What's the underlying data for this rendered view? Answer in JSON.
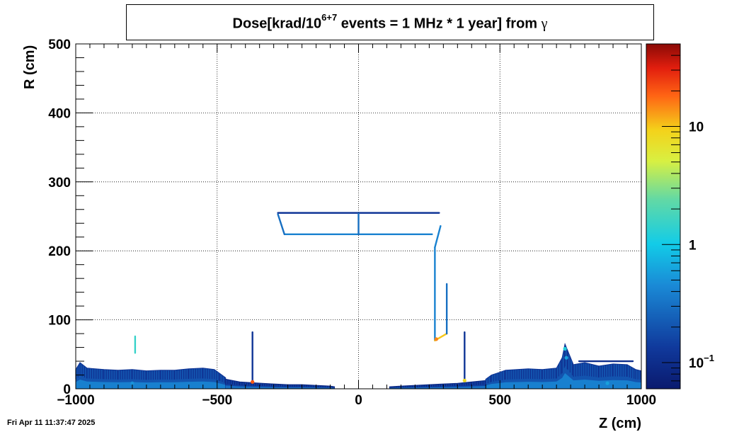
{
  "header": {
    "title_prefix": "Dose[krad/10",
    "title_exponent": "6+7",
    "title_suffix": " events = 1 MHz * 1 year] from ",
    "title_symbol": "γ"
  },
  "footer": {
    "timestamp": "Fri Apr 11 11:37:47 2025"
  },
  "chart_data": {
    "type": "heatmap",
    "xlabel": "Z (cm)",
    "ylabel": "R (cm)",
    "xlim": [
      -1000,
      1000
    ],
    "ylim": [
      0,
      500
    ],
    "grid": true,
    "x_tick_labels": [
      "−1000",
      "−500",
      "0",
      "500",
      "1000"
    ],
    "x_tick_values": [
      -1000,
      -500,
      0,
      500,
      1000
    ],
    "y_tick_labels": [
      "0",
      "100",
      "200",
      "300",
      "400",
      "500"
    ],
    "y_tick_values": [
      0,
      100,
      200,
      300,
      400,
      500
    ],
    "colorbar": {
      "scale": "log",
      "range": [
        0.06,
        50
      ],
      "labels": [
        {
          "value": 10,
          "text": "10",
          "exp": ""
        },
        {
          "value": 1,
          "text": "1",
          "exp": ""
        },
        {
          "value": 0.1,
          "text": "10",
          "exp": "−1"
        }
      ]
    },
    "regions": [
      {
        "name": "inner-support-trapezoid-top",
        "points": [
          [
            -285,
            255
          ],
          [
            285,
            255
          ]
        ],
        "dose": 0.12
      },
      {
        "name": "inner-support-trapezoid-bottom",
        "points": [
          [
            -260,
            224
          ],
          [
            260,
            224
          ]
        ],
        "dose": 0.4
      },
      {
        "name": "inner-support-left-edge",
        "points": [
          [
            -285,
            253
          ],
          [
            -262,
            224
          ]
        ],
        "dose": 0.3
      },
      {
        "name": "inner-support-center-post",
        "points": [
          [
            0,
            254
          ],
          [
            0,
            224
          ]
        ],
        "dose": 0.3
      },
      {
        "name": "outer-cable-diagonal",
        "points": [
          [
            290,
            236
          ],
          [
            270,
            205
          ]
        ],
        "dose": 0.4
      },
      {
        "name": "outer-cable-vertical",
        "points": [
          [
            270,
            205
          ],
          [
            270,
            70
          ]
        ],
        "dose": 0.4
      },
      {
        "name": "outer-cable-bottom",
        "points": [
          [
            270,
            70
          ],
          [
            312,
            80
          ]
        ],
        "dose": 10
      },
      {
        "name": "outer-cable-riser",
        "points": [
          [
            312,
            80
          ],
          [
            312,
            152
          ]
        ],
        "dose": 0.3
      },
      {
        "name": "left-stave-post",
        "points": [
          [
            -375,
            82
          ],
          [
            -375,
            8
          ]
        ],
        "dose": 0.12
      },
      {
        "name": "right-stave-post",
        "points": [
          [
            375,
            82
          ],
          [
            375,
            8
          ]
        ],
        "dose": 0.12
      },
      {
        "name": "left-small-marker",
        "points": [
          [
            -790,
            76
          ],
          [
            -790,
            52
          ]
        ],
        "dose": 1.5
      },
      {
        "name": "right-forward-ledge",
        "points": [
          [
            780,
            40
          ],
          [
            970,
            40
          ]
        ],
        "dose": 0.1
      }
    ],
    "profiles": [
      {
        "name": "left-endcap-band",
        "z": [
          -1000,
          -985,
          -960,
          -900,
          -850,
          -800,
          -750,
          -700,
          -650,
          -600,
          -550,
          -510,
          -490,
          -470
        ],
        "r": [
          28,
          38,
          30,
          28,
          27,
          28,
          26,
          27,
          27,
          29,
          30,
          28,
          22,
          16
        ],
        "dose": 0.2
      },
      {
        "name": "left-beampipe-band",
        "z": [
          -470,
          -420,
          -380,
          -340,
          -300,
          -250,
          -200,
          -150,
          -100,
          -85
        ],
        "r": [
          14,
          10,
          9,
          8,
          7,
          6,
          6,
          5,
          4,
          3
        ],
        "dose": 0.15
      },
      {
        "name": "right-beampipe-band",
        "z": [
          110,
          150,
          200,
          250,
          300,
          350,
          400,
          450
        ],
        "r": [
          3,
          4,
          5,
          6,
          7,
          8,
          10,
          12
        ],
        "dose": 0.15
      },
      {
        "name": "right-endcap-band",
        "z": [
          450,
          470,
          500,
          520,
          560,
          600,
          650,
          700,
          720,
          730,
          740,
          760,
          800,
          850,
          900,
          950,
          980,
          1000
        ],
        "r": [
          14,
          20,
          24,
          27,
          28,
          29,
          28,
          30,
          45,
          65,
          55,
          35,
          38,
          33,
          36,
          35,
          28,
          26
        ],
        "dose": 0.2
      }
    ],
    "hotspots": [
      {
        "z": 275,
        "r": 72,
        "dose": 15
      },
      {
        "z": -375,
        "r": 10,
        "dose": 20
      },
      {
        "z": 375,
        "r": 12,
        "dose": 8
      },
      {
        "z": 730,
        "r": 58,
        "dose": 1.2
      },
      {
        "z": 735,
        "r": 45,
        "dose": 0.6
      },
      {
        "z": -800,
        "r": 8,
        "dose": 0.5
      },
      {
        "z": 880,
        "r": 8,
        "dose": 0.6
      }
    ]
  }
}
